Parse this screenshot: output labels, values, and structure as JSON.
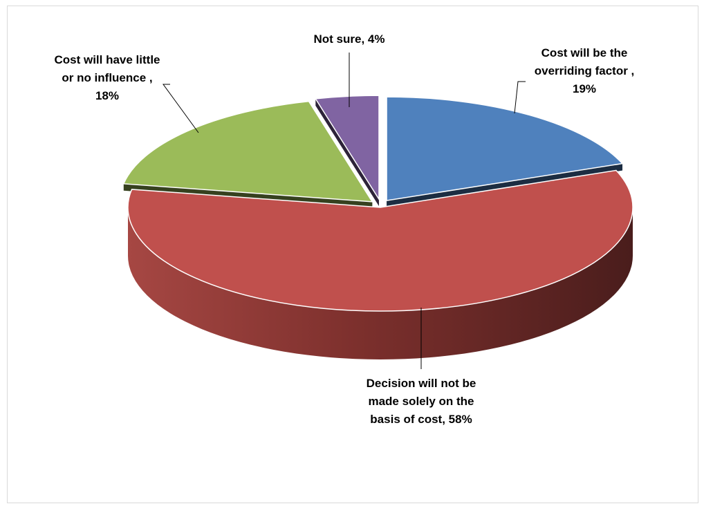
{
  "chart_data": {
    "type": "pie",
    "title": "",
    "three_d": true,
    "slices": [
      {
        "label": "Cost will be the overriding factor",
        "value": 19,
        "display": [
          "Cost will be the",
          "overriding factor ,",
          "19%"
        ],
        "color": "#4f81bd",
        "exploded": true
      },
      {
        "label": "Decision will not be made solely on the basis of cost",
        "value": 58,
        "display": [
          "Decision will not be",
          "made solely on the",
          "basis of cost, 58%"
        ],
        "color": "#c0504d",
        "exploded": false
      },
      {
        "label": "Cost will have little or no influence",
        "value": 18,
        "display": [
          "Cost will have little",
          "or no influence ,",
          "18%"
        ],
        "color": "#9bbb59",
        "exploded": true
      },
      {
        "label": "Not sure",
        "value": 4,
        "display": [
          "Not sure, 4%"
        ],
        "color": "#8064a2",
        "exploded": true
      }
    ],
    "legend": "none"
  }
}
